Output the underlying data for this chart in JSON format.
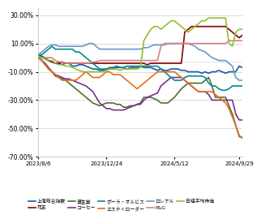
{
  "title": "",
  "xlabel": "",
  "ylabel": "",
  "ylim": [
    -0.7,
    0.35
  ],
  "yticks": [
    -0.7,
    -0.5,
    -0.3,
    -0.1,
    0.1,
    0.3
  ],
  "ytick_labels": [
    "-70.00%",
    "-50.00%",
    "-30.00%",
    "-10.00%",
    "10.00%",
    "30.00%"
  ],
  "x_dates": [
    "2023/8/6",
    "2023/12/24",
    "2024/5/12",
    "2024/9/29"
  ],
  "hline_y": -0.03,
  "series": {
    "上海総合指数": {
      "color": "#2155a3",
      "lw": 1.2,
      "data_x": [
        0,
        5,
        10,
        15,
        20,
        25,
        30,
        35,
        40,
        45,
        50,
        55,
        60,
        65,
        70,
        75,
        80,
        85,
        90,
        95,
        100,
        105,
        110,
        115,
        120,
        125,
        130,
        135,
        140,
        145,
        150,
        155,
        160,
        165,
        170,
        175,
        180,
        185,
        190,
        195,
        200,
        205,
        210,
        215,
        220,
        225,
        230,
        235,
        240,
        245,
        250,
        255,
        260,
        265,
        270,
        275,
        280,
        285,
        290,
        295,
        300
      ],
      "data_y": [
        0.02,
        0.01,
        0.0,
        -0.02,
        -0.03,
        -0.04,
        -0.04,
        -0.05,
        -0.04,
        -0.04,
        -0.06,
        -0.06,
        -0.05,
        -0.05,
        -0.06,
        -0.07,
        -0.08,
        -0.08,
        -0.09,
        -0.09,
        -0.08,
        -0.07,
        -0.07,
        -0.06,
        -0.07,
        -0.07,
        -0.08,
        -0.07,
        -0.07,
        -0.07,
        -0.06,
        -0.07,
        -0.07,
        -0.07,
        -0.08,
        -0.09,
        -0.08,
        -0.09,
        -0.09,
        -0.08,
        -0.08,
        -0.08,
        -0.09,
        -0.09,
        -0.1,
        -0.1,
        -0.1,
        -0.1,
        -0.11,
        -0.1,
        -0.11,
        -0.1,
        -0.1,
        -0.09,
        -0.1,
        -0.11,
        -0.1,
        -0.1,
        -0.1,
        -0.06,
        -0.07
      ]
    },
    "花王": {
      "color": "#8b0000",
      "lw": 1.2,
      "data_x": [
        0,
        5,
        10,
        15,
        20,
        25,
        30,
        35,
        40,
        45,
        50,
        55,
        60,
        65,
        70,
        75,
        80,
        85,
        90,
        95,
        100,
        105,
        110,
        115,
        120,
        125,
        130,
        135,
        140,
        145,
        150,
        155,
        160,
        165,
        170,
        175,
        180,
        185,
        190,
        195,
        200,
        205,
        210,
        215,
        220,
        225,
        230,
        235,
        240,
        245,
        250,
        255,
        260,
        265,
        270,
        275,
        280,
        285,
        290,
        295,
        300
      ],
      "data_y": [
        0.01,
        0.0,
        -0.01,
        -0.02,
        -0.03,
        -0.04,
        -0.04,
        -0.03,
        -0.04,
        -0.04,
        -0.04,
        -0.04,
        -0.04,
        -0.04,
        -0.04,
        -0.04,
        -0.04,
        -0.04,
        -0.04,
        -0.04,
        -0.04,
        -0.04,
        -0.04,
        -0.04,
        -0.04,
        -0.04,
        -0.04,
        -0.04,
        -0.04,
        -0.04,
        -0.04,
        -0.04,
        -0.05,
        -0.04,
        -0.04,
        -0.04,
        -0.04,
        -0.04,
        -0.04,
        -0.04,
        -0.04,
        -0.04,
        -0.04,
        0.18,
        0.2,
        0.22,
        0.22,
        0.22,
        0.22,
        0.22,
        0.22,
        0.22,
        0.22,
        0.22,
        0.22,
        0.22,
        0.2,
        0.18,
        0.16,
        0.14,
        0.16
      ]
    },
    "資生堂": {
      "color": "#556b2f",
      "lw": 1.2,
      "data_x": [
        0,
        5,
        10,
        15,
        20,
        25,
        30,
        35,
        40,
        45,
        50,
        55,
        60,
        65,
        70,
        75,
        80,
        85,
        90,
        95,
        100,
        105,
        110,
        115,
        120,
        125,
        130,
        135,
        140,
        145,
        150,
        155,
        160,
        165,
        170,
        175,
        180,
        185,
        190,
        195,
        200,
        205,
        210,
        215,
        220,
        225,
        230,
        235,
        240,
        245,
        250,
        255,
        260,
        265,
        270,
        275,
        280,
        285,
        290,
        295,
        300
      ],
      "data_y": [
        0.0,
        -0.02,
        -0.05,
        -0.08,
        -0.1,
        -0.13,
        -0.14,
        -0.15,
        -0.16,
        -0.18,
        -0.2,
        -0.22,
        -0.24,
        -0.26,
        -0.28,
        -0.3,
        -0.32,
        -0.33,
        -0.34,
        -0.33,
        -0.32,
        -0.32,
        -0.32,
        -0.33,
        -0.33,
        -0.35,
        -0.35,
        -0.34,
        -0.34,
        -0.33,
        -0.32,
        -0.28,
        -0.28,
        -0.28,
        -0.29,
        -0.3,
        -0.32,
        -0.32,
        -0.32,
        -0.3,
        -0.28,
        -0.25,
        -0.22,
        -0.2,
        -0.18,
        -0.18,
        -0.18,
        -0.18,
        -0.18,
        -0.16,
        -0.14,
        -0.2,
        -0.28,
        -0.28,
        -0.28,
        -0.28,
        -0.34,
        -0.4,
        -0.48,
        -0.55,
        -0.57
      ]
    },
    "コーセー": {
      "color": "#7b2d8b",
      "lw": 1.2,
      "data_x": [
        0,
        5,
        10,
        15,
        20,
        25,
        30,
        35,
        40,
        45,
        50,
        55,
        60,
        65,
        70,
        75,
        80,
        85,
        90,
        95,
        100,
        105,
        110,
        115,
        120,
        125,
        130,
        135,
        140,
        145,
        150,
        155,
        160,
        165,
        170,
        175,
        180,
        185,
        190,
        195,
        200,
        205,
        210,
        215,
        220,
        225,
        230,
        235,
        240,
        245,
        250,
        255,
        260,
        265,
        270,
        275,
        280,
        285,
        290,
        295,
        300
      ],
      "data_y": [
        0.0,
        -0.02,
        -0.04,
        -0.07,
        -0.1,
        -0.12,
        -0.13,
        -0.14,
        -0.15,
        -0.15,
        -0.16,
        -0.17,
        -0.18,
        -0.19,
        -0.2,
        -0.22,
        -0.24,
        -0.28,
        -0.32,
        -0.34,
        -0.36,
        -0.36,
        -0.37,
        -0.37,
        -0.37,
        -0.37,
        -0.36,
        -0.35,
        -0.34,
        -0.33,
        -0.33,
        -0.3,
        -0.28,
        -0.27,
        -0.26,
        -0.25,
        -0.2,
        -0.18,
        -0.16,
        -0.14,
        -0.14,
        -0.14,
        -0.14,
        -0.16,
        -0.18,
        -0.2,
        -0.22,
        -0.24,
        -0.24,
        -0.24,
        -0.26,
        -0.3,
        -0.3,
        -0.3,
        -0.3,
        -0.3,
        -0.3,
        -0.3,
        -0.4,
        -0.44,
        -0.44
      ]
    },
    "ポーラ・オルビス": {
      "color": "#008b8b",
      "lw": 1.2,
      "data_x": [
        0,
        5,
        10,
        15,
        20,
        25,
        30,
        35,
        40,
        45,
        50,
        55,
        60,
        65,
        70,
        75,
        80,
        85,
        90,
        95,
        100,
        105,
        110,
        115,
        120,
        125,
        130,
        135,
        140,
        145,
        150,
        155,
        160,
        165,
        170,
        175,
        180,
        185,
        190,
        195,
        200,
        205,
        210,
        215,
        220,
        225,
        230,
        235,
        240,
        245,
        250,
        255,
        260,
        265,
        270,
        275,
        280,
        285,
        290,
        295,
        300
      ],
      "data_y": [
        0.02,
        0.02,
        0.04,
        0.06,
        0.08,
        0.06,
        0.06,
        0.06,
        0.06,
        0.06,
        0.06,
        0.04,
        0.04,
        0.02,
        0.0,
        -0.02,
        -0.04,
        -0.06,
        -0.08,
        -0.08,
        -0.08,
        -0.08,
        -0.08,
        -0.07,
        -0.07,
        -0.07,
        -0.06,
        -0.06,
        -0.06,
        -0.06,
        -0.06,
        -0.06,
        -0.06,
        -0.06,
        -0.06,
        -0.06,
        -0.08,
        -0.1,
        -0.12,
        -0.14,
        -0.16,
        -0.16,
        -0.16,
        -0.14,
        -0.13,
        -0.13,
        -0.13,
        -0.13,
        -0.13,
        -0.14,
        -0.18,
        -0.2,
        -0.2,
        -0.22,
        -0.23,
        -0.23,
        -0.22,
        -0.2,
        -0.2,
        -0.2,
        -0.2
      ]
    },
    "エスティローダー": {
      "color": "#e07020",
      "lw": 1.2,
      "data_x": [
        0,
        5,
        10,
        15,
        20,
        25,
        30,
        35,
        40,
        45,
        50,
        55,
        60,
        65,
        70,
        75,
        80,
        85,
        90,
        95,
        100,
        105,
        110,
        115,
        120,
        125,
        130,
        135,
        140,
        145,
        150,
        155,
        160,
        165,
        170,
        175,
        180,
        185,
        190,
        195,
        200,
        205,
        210,
        215,
        220,
        225,
        230,
        235,
        240,
        245,
        250,
        255,
        260,
        265,
        270,
        275,
        280,
        285,
        290,
        295,
        300
      ],
      "data_y": [
        0.0,
        -0.02,
        -0.05,
        -0.08,
        -0.1,
        -0.12,
        -0.14,
        -0.16,
        -0.16,
        -0.16,
        -0.16,
        -0.16,
        -0.14,
        -0.12,
        -0.1,
        -0.12,
        -0.14,
        -0.14,
        -0.14,
        -0.12,
        -0.1,
        -0.1,
        -0.12,
        -0.12,
        -0.12,
        -0.14,
        -0.16,
        -0.18,
        -0.2,
        -0.22,
        -0.2,
        -0.18,
        -0.16,
        -0.14,
        -0.12,
        -0.1,
        -0.1,
        -0.1,
        -0.1,
        -0.1,
        -0.1,
        -0.12,
        -0.14,
        -0.16,
        -0.18,
        -0.2,
        -0.22,
        -0.24,
        -0.24,
        -0.24,
        -0.24,
        -0.24,
        -0.26,
        -0.28,
        -0.3,
        -0.32,
        -0.36,
        -0.42,
        -0.48,
        -0.56,
        -0.56
      ]
    },
    "ロレアル": {
      "color": "#6699cc",
      "lw": 1.2,
      "data_x": [
        0,
        5,
        10,
        15,
        20,
        25,
        30,
        35,
        40,
        45,
        50,
        55,
        60,
        65,
        70,
        75,
        80,
        85,
        90,
        95,
        100,
        105,
        110,
        115,
        120,
        125,
        130,
        135,
        140,
        145,
        150,
        155,
        160,
        165,
        170,
        175,
        180,
        185,
        190,
        195,
        200,
        205,
        210,
        215,
        220,
        225,
        230,
        235,
        240,
        245,
        250,
        255,
        260,
        265,
        270,
        275,
        280,
        285,
        290,
        295,
        300
      ],
      "data_y": [
        0.02,
        0.04,
        0.06,
        0.08,
        0.09,
        0.09,
        0.08,
        0.08,
        0.08,
        0.08,
        0.08,
        0.08,
        0.08,
        0.08,
        0.09,
        0.1,
        0.1,
        0.08,
        0.06,
        0.06,
        0.06,
        0.06,
        0.06,
        0.06,
        0.06,
        0.06,
        0.06,
        0.06,
        0.06,
        0.06,
        0.06,
        0.07,
        0.07,
        0.08,
        0.09,
        0.09,
        0.09,
        0.09,
        0.1,
        0.1,
        0.1,
        0.1,
        0.1,
        0.1,
        0.1,
        0.09,
        0.08,
        0.06,
        0.05,
        0.04,
        0.02,
        0.0,
        -0.01,
        -0.02,
        -0.02,
        -0.02,
        -0.04,
        -0.06,
        -0.14,
        -0.16,
        -0.16
      ]
    },
    "P&G": {
      "color": "#e08080",
      "lw": 1.2,
      "data_x": [
        0,
        5,
        10,
        15,
        20,
        25,
        30,
        35,
        40,
        45,
        50,
        55,
        60,
        65,
        70,
        75,
        80,
        85,
        90,
        95,
        100,
        105,
        110,
        115,
        120,
        125,
        130,
        135,
        140,
        145,
        150,
        155,
        160,
        165,
        170,
        175,
        180,
        185,
        190,
        195,
        200,
        205,
        210,
        215,
        220,
        225,
        230,
        235,
        240,
        245,
        250,
        255,
        260,
        265,
        270,
        275,
        280,
        285,
        290,
        295,
        300
      ],
      "data_y": [
        0.0,
        0.0,
        0.0,
        0.0,
        0.0,
        -0.02,
        -0.03,
        -0.03,
        -0.04,
        -0.04,
        -0.04,
        -0.04,
        -0.04,
        -0.04,
        -0.04,
        -0.04,
        -0.03,
        -0.03,
        -0.02,
        -0.02,
        -0.02,
        -0.02,
        -0.02,
        -0.02,
        -0.02,
        -0.02,
        -0.02,
        -0.02,
        -0.02,
        -0.02,
        -0.02,
        -0.02,
        -0.02,
        -0.02,
        -0.02,
        -0.02,
        0.08,
        0.1,
        0.1,
        0.1,
        0.1,
        0.1,
        0.1,
        0.1,
        0.1,
        0.1,
        0.1,
        0.1,
        0.1,
        0.1,
        0.1,
        0.1,
        0.1,
        0.1,
        0.1,
        0.1,
        0.12,
        0.12,
        0.12,
        0.12,
        0.12
      ]
    },
    "日経平均株価": {
      "color": "#90c030",
      "lw": 1.2,
      "data_x": [
        0,
        5,
        10,
        15,
        20,
        25,
        30,
        35,
        40,
        45,
        50,
        55,
        60,
        65,
        70,
        75,
        80,
        85,
        90,
        95,
        100,
        105,
        110,
        115,
        120,
        125,
        130,
        135,
        140,
        145,
        150,
        155,
        160,
        165,
        170,
        175,
        180,
        185,
        190,
        195,
        200,
        205,
        210,
        215,
        220,
        225,
        230,
        235,
        240,
        245,
        250,
        255,
        260,
        265,
        270,
        275,
        280,
        285,
        290,
        295,
        300
      ],
      "data_y": [
        0.01,
        0.0,
        -0.01,
        -0.02,
        -0.02,
        -0.04,
        -0.05,
        -0.05,
        -0.06,
        -0.06,
        -0.07,
        -0.08,
        -0.09,
        -0.1,
        -0.1,
        -0.1,
        -0.1,
        -0.1,
        -0.1,
        -0.1,
        -0.09,
        -0.08,
        -0.08,
        -0.08,
        -0.09,
        -0.08,
        -0.08,
        -0.08,
        -0.08,
        -0.08,
        -0.07,
        0.12,
        0.16,
        0.2,
        0.22,
        0.22,
        0.2,
        0.22,
        0.24,
        0.26,
        0.26,
        0.24,
        0.22,
        0.2,
        0.18,
        0.2,
        0.22,
        0.24,
        0.26,
        0.26,
        0.28,
        0.28,
        0.28,
        0.28,
        0.28,
        0.28,
        0.1,
        0.08,
        0.18,
        0.2,
        0.2
      ]
    }
  },
  "legend": [
    {
      "label": "上海総合指数",
      "color": "#2155a3"
    },
    {
      "label": "花王",
      "color": "#8b0000"
    },
    {
      "label": "資生堂",
      "color": "#556b2f"
    },
    {
      "label": "コーセー",
      "color": "#7b2d8b"
    },
    {
      "label": "ポーラ・オルビス",
      "color": "#008b8b"
    },
    {
      "label": "エスティローダー",
      "color": "#e07020"
    },
    {
      "label": "ロレアル",
      "color": "#6699cc"
    },
    {
      "label": "P&G",
      "color": "#e08080"
    },
    {
      "label": "日経平均株価",
      "color": "#90c030"
    }
  ],
  "bg_color": "#ffffff",
  "grid_color": "#cccccc",
  "hline_color": "#aaaaaa",
  "x_tick_positions": [
    0,
    100,
    200,
    295
  ],
  "x_tick_labels": [
    "2023/8/6",
    "2023/12/24",
    "2024/5/12",
    "2024/9/29"
  ]
}
